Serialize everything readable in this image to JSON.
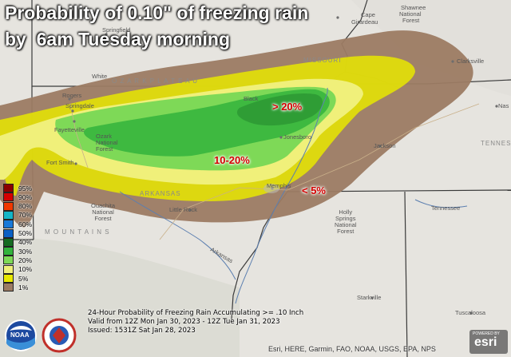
{
  "title_line1": "Probability of 0.10\" of freezing rain",
  "title_line2": "by  6am Tuesday morning",
  "prob_labels": {
    "high": "> 20%",
    "mid": "10-20%",
    "low": "< 5%"
  },
  "legend": [
    {
      "label": "95%",
      "color": "#8b0000"
    },
    {
      "label": "90%",
      "color": "#d40000"
    },
    {
      "label": "80%",
      "color": "#f03800"
    },
    {
      "label": "70%",
      "color": "#12b5c7"
    },
    {
      "label": "60%",
      "color": "#1878d8"
    },
    {
      "label": "50%",
      "color": "#0a5fc4"
    },
    {
      "label": "40%",
      "color": "#156b21"
    },
    {
      "label": "30%",
      "color": "#32b33c"
    },
    {
      "label": "20%",
      "color": "#7ed957"
    },
    {
      "label": "10%",
      "color": "#f0f07a"
    },
    {
      "label": "5%",
      "color": "#e8e800"
    },
    {
      "label": "1%",
      "color": "#9c7b63"
    }
  ],
  "info": {
    "line1": "24-Hour Probability of Freezing Rain Accumulating >= .10 Inch",
    "line2": "Valid from 12Z Mon Jan 30, 2023 - 12Z Tue Jan 31, 2023",
    "line3": "Issued: 1531Z Sat Jan 28, 2023"
  },
  "attribution": "Esri, HERE, Garmin, FAO, NOAA, USGS, EPA, NPS",
  "logos": {
    "esri_top": "POWERED BY",
    "esri": "esri",
    "noaa": "NOAA"
  },
  "states": {
    "missouri": "MISSOURI",
    "arkansas": "ARKANSAS",
    "tennessee": "TENNES",
    "ozark": "O Z A R K   P L A T E A U",
    "ouachita": "M O U N T A I N S"
  },
  "places": {
    "cape": "Cape",
    "girardeau": "Girardeau",
    "shawnee": "Shawnee",
    "national": "National",
    "forest": "Forest",
    "springfield": "Springfield",
    "white": "White",
    "rogers": "Rogers",
    "springdale": "Springdale",
    "fayetteville": "Fayetteville",
    "ozark_nf": "Ozark\nNational\nForest",
    "jonesboro": "Jonesboro",
    "fort_smith": "Fort Smith",
    "ouachita_nf": "Ouachita\nNational\nForest",
    "little_rock": "Little Rock",
    "memphis": "Memphis",
    "holly": "Holly\nSprings\nNational\nForest",
    "jackson": "Jackson",
    "clarksville": "Clarksville",
    "nash": "Nas",
    "tennessee_river": "Tennessee",
    "starkville": "Starkville",
    "tuscaloosa": "Tuscaloosa",
    "arkansas_river": "Arkansas",
    "black": "Black"
  }
}
